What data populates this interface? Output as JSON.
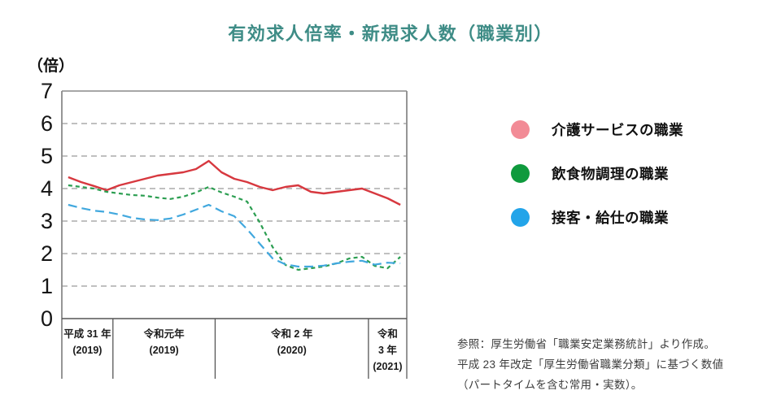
{
  "title": "有効求人倍率・新規求人数（職業別）",
  "legend": {
    "items": [
      {
        "label": "介護サービスの職業",
        "color": "#f28b96"
      },
      {
        "label": "飲食物調理の職業",
        "color": "#0f9a3d"
      },
      {
        "label": "接客・給仕の職業",
        "color": "#22a4e9"
      }
    ]
  },
  "source_note": {
    "lines": [
      "参照：厚生労働省「職業安定業務統計」より作成。",
      "平成 23 年改定「厚生労働省職業分類」に基づく数値",
      "（パートタイムを含む常用・実数）。"
    ]
  },
  "chart_data": {
    "type": "line",
    "title": "有効求人倍率・新規求人数（職業別）",
    "unit_label": "（倍）",
    "ylabel": "倍",
    "ylim": [
      0,
      7
    ],
    "yticks": [
      0,
      1,
      2,
      3,
      4,
      5,
      6,
      7
    ],
    "grid": "horizontal dashed gridlines at 1-6",
    "legend_position": "right",
    "x_unit": "month",
    "x_range": "2019-01 to 2021-03 (27 monthly points)",
    "x_sections": [
      {
        "lines": [
          "平成 31 年",
          "(2019)"
        ],
        "months": 4
      },
      {
        "lines": [
          "令和元年",
          "(2019)"
        ],
        "months": 8
      },
      {
        "lines": [
          "令和 2 年",
          "(2020)"
        ],
        "months": 12
      },
      {
        "lines": [
          "令和",
          "3 年",
          "(2021)"
        ],
        "months": 3
      }
    ],
    "series": [
      {
        "name": "介護サービスの職業",
        "color": "#d7383f",
        "dash": "",
        "values": [
          4.35,
          4.2,
          4.08,
          3.95,
          4.1,
          4.2,
          4.3,
          4.4,
          4.45,
          4.5,
          4.6,
          4.85,
          4.5,
          4.3,
          4.2,
          4.05,
          3.95,
          4.05,
          4.1,
          3.9,
          3.85,
          3.9,
          3.95,
          4.0,
          3.85,
          3.7,
          3.5
        ]
      },
      {
        "name": "飲食物調理の職業",
        "color": "#2b9e51",
        "dash": "5,4",
        "values": [
          4.1,
          4.05,
          4.0,
          3.9,
          3.85,
          3.8,
          3.78,
          3.72,
          3.68,
          3.75,
          3.88,
          4.05,
          3.88,
          3.75,
          3.6,
          2.95,
          2.2,
          1.65,
          1.5,
          1.55,
          1.6,
          1.7,
          1.85,
          1.9,
          1.62,
          1.55,
          1.9
        ]
      },
      {
        "name": "接客・給仕の職業",
        "color": "#41a8de",
        "dash": "11,6",
        "values": [
          3.5,
          3.4,
          3.32,
          3.28,
          3.2,
          3.1,
          3.05,
          3.03,
          3.08,
          3.2,
          3.35,
          3.5,
          3.3,
          3.15,
          2.75,
          2.3,
          1.85,
          1.67,
          1.6,
          1.6,
          1.63,
          1.7,
          1.75,
          1.78,
          1.66,
          1.72,
          1.7
        ]
      }
    ]
  },
  "colors": {
    "title": "#3e8c86",
    "axis_text": "#141414",
    "grid": "#ababab",
    "border": "#8a8a8a",
    "divider": "#555555",
    "note_text": "#3c3c3c"
  }
}
